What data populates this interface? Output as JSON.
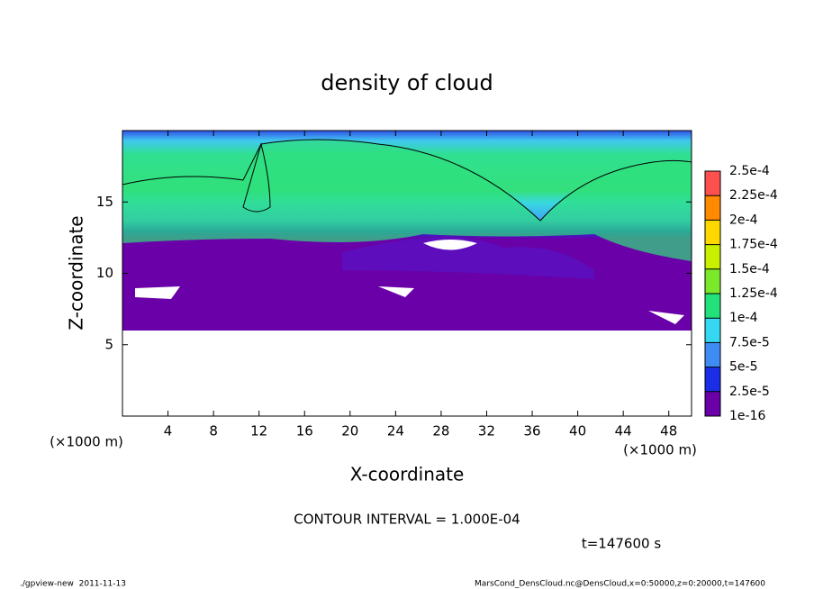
{
  "chart_data": {
    "type": "heatmap",
    "title": "density of cloud",
    "xlabel": "X-coordinate",
    "ylabel": "Z-coordinate",
    "x_unit": "(×1000 m)",
    "y_unit": "(×1000 m)",
    "xlim": [
      0,
      50
    ],
    "ylim": [
      0,
      20
    ],
    "xticks": [
      4,
      8,
      12,
      16,
      20,
      24,
      28,
      32,
      36,
      40,
      44,
      48
    ],
    "yticks": [
      5,
      10,
      15
    ],
    "colorbar": {
      "levels": [
        {
          "value": 1e-16,
          "label": "1e-16"
        },
        {
          "value": 2.5e-05,
          "label": "2.5e-5"
        },
        {
          "value": 5e-05,
          "label": "5e-5"
        },
        {
          "value": 7.5e-05,
          "label": "7.5e-5"
        },
        {
          "value": 0.0001,
          "label": "1e-4"
        },
        {
          "value": 0.000125,
          "label": "1.25e-4"
        },
        {
          "value": 0.00015,
          "label": "1.5e-4"
        },
        {
          "value": 0.000175,
          "label": "1.75e-4"
        },
        {
          "value": 0.0002,
          "label": "2e-4"
        },
        {
          "value": 0.000225,
          "label": "2.25e-4"
        },
        {
          "value": 0.00025,
          "label": "2.5e-4"
        }
      ],
      "colors": [
        "#6a00a8",
        "#1a2ee8",
        "#3f8cf5",
        "#35d8f0",
        "#22e07a",
        "#7be82a",
        "#c8f000",
        "#ffd800",
        "#ff8a00",
        "#ff5050"
      ]
    },
    "contour_note": "CONTOUR INTERVAL = 1.000E-04",
    "time_note": "t=147600 s",
    "footer_left": "./gpview-new  2011-11-13",
    "footer_right": "MarsCond_DensCloud.nc@DensCloud,x=0:50000,z=0:20000,t=147600"
  }
}
